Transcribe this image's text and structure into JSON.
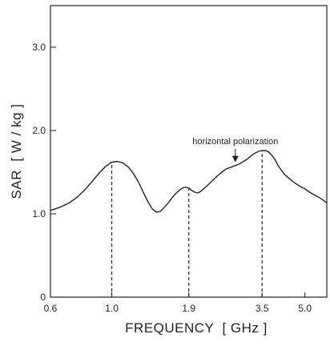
{
  "colors": {
    "background": "#ffffff",
    "ink": "#222222"
  },
  "chart_data": {
    "type": "line",
    "xlabel": "FREQUENCY  [ GHz ]",
    "ylabel": "SAR  [ W / kg ]",
    "x_scale": "log",
    "xlim": [
      0.6,
      6.0
    ],
    "ylim": [
      0,
      3.5
    ],
    "x_ticks": [
      {
        "value": 0.6,
        "label": "0.6"
      },
      {
        "value": 1.0,
        "label": "1.0"
      },
      {
        "value": 1.9,
        "label": "1.9"
      },
      {
        "value": 3.5,
        "label": "3.5"
      },
      {
        "value": 5.0,
        "label": "5.0"
      }
    ],
    "y_ticks": [
      {
        "value": 0,
        "label": "0"
      },
      {
        "value": 1.0,
        "label": "1.0"
      },
      {
        "value": 2.0,
        "label": "2.0"
      },
      {
        "value": 3.0,
        "label": "3.0"
      }
    ],
    "grid": false,
    "legend": "none",
    "series": [
      {
        "x": [
          0.6,
          0.65,
          0.7,
          0.75,
          0.8,
          0.85,
          0.9,
          0.95,
          1.0,
          1.05,
          1.1,
          1.15,
          1.2,
          1.25,
          1.3,
          1.35,
          1.4,
          1.45,
          1.5,
          1.55,
          1.6,
          1.65,
          1.7,
          1.75,
          1.8,
          1.85,
          1.9,
          1.95,
          2.0,
          2.05,
          2.1,
          2.2,
          2.3,
          2.4,
          2.5,
          2.6,
          2.7,
          2.8,
          2.9,
          3.0,
          3.1,
          3.2,
          3.3,
          3.4,
          3.5,
          3.6,
          3.7,
          3.8,
          3.9,
          4.0,
          4.2,
          4.4,
          4.6,
          4.8,
          5.0,
          5.2,
          5.4,
          5.6,
          5.8,
          6.0
        ],
        "values": [
          1.04,
          1.08,
          1.13,
          1.2,
          1.29,
          1.39,
          1.49,
          1.57,
          1.62,
          1.63,
          1.61,
          1.56,
          1.48,
          1.38,
          1.26,
          1.15,
          1.06,
          1.02,
          1.03,
          1.08,
          1.13,
          1.19,
          1.24,
          1.28,
          1.31,
          1.32,
          1.31,
          1.28,
          1.26,
          1.25,
          1.27,
          1.33,
          1.39,
          1.45,
          1.5,
          1.54,
          1.56,
          1.58,
          1.6,
          1.63,
          1.66,
          1.7,
          1.73,
          1.75,
          1.76,
          1.76,
          1.74,
          1.7,
          1.65,
          1.58,
          1.48,
          1.42,
          1.37,
          1.33,
          1.3,
          1.26,
          1.23,
          1.2,
          1.17,
          1.13
        ]
      }
    ],
    "reference_lines": [
      {
        "x": 1.0
      },
      {
        "x": 1.9
      },
      {
        "x": 3.5
      }
    ],
    "annotations": [
      {
        "text": "horizontal polarization",
        "points_to_x": 2.8
      }
    ]
  }
}
